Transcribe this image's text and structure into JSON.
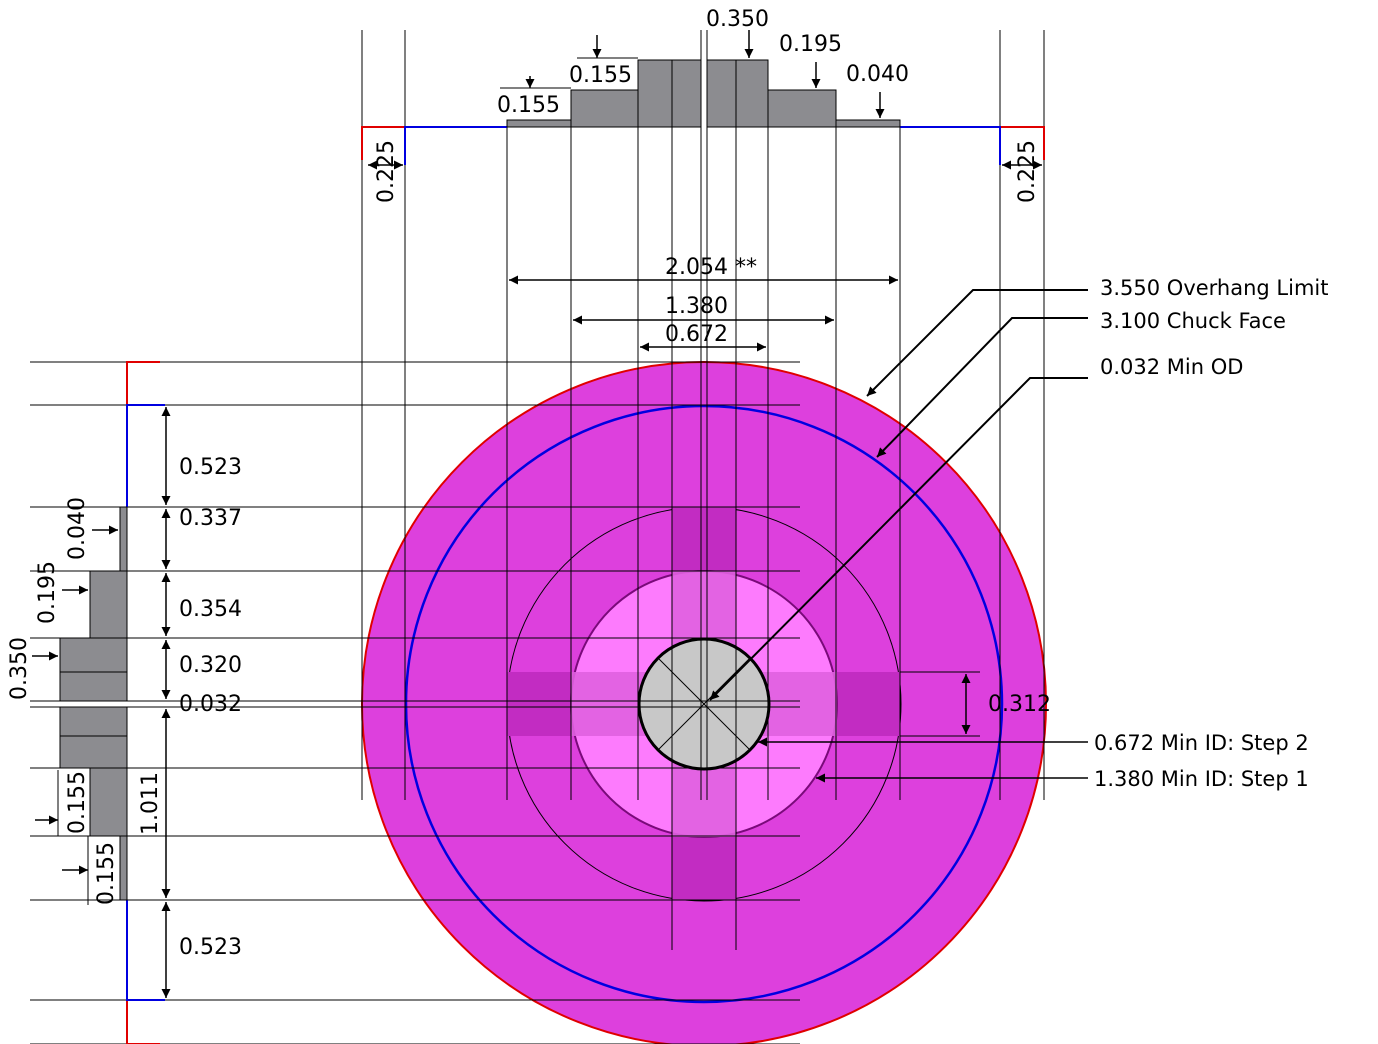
{
  "top_profile": {
    "step_labels": [
      "0.350",
      "0.195",
      "0.155",
      "0.040",
      "0.155"
    ],
    "end_labels": [
      "0.225",
      "0.225"
    ]
  },
  "horizontal_dims": [
    {
      "label": "2.054 **"
    },
    {
      "label": "1.380"
    },
    {
      "label": "0.672"
    }
  ],
  "left_profile": {
    "step_labels": [
      "0.040",
      "0.195",
      "0.350",
      "0.155",
      "0.155"
    ]
  },
  "vertical_dims": [
    {
      "label": "0.523"
    },
    {
      "label": "0.337"
    },
    {
      "label": "0.354"
    },
    {
      "label": "0.320"
    },
    {
      "label": "0.032"
    },
    {
      "label": "1.011"
    },
    {
      "label": "0.523"
    }
  ],
  "offset_dim": {
    "label": "0.312"
  },
  "callouts": [
    {
      "label": "3.550 Overhang Limit"
    },
    {
      "label": "3.100 Chuck Face"
    },
    {
      "label": "0.032 Min OD"
    },
    {
      "label": "0.672 Min ID: Step 2"
    },
    {
      "label": "1.380 Min ID: Step 1"
    }
  ],
  "colors": {
    "outer_disc": "#dd40dd",
    "mid_disc": "#ff80ff",
    "bore": "#c8c8c8",
    "profile_fill": "#8c8c90",
    "overhang_line": "#e00000",
    "chuck_line": "#0000e0",
    "slot_fill": "#c22cc2"
  }
}
